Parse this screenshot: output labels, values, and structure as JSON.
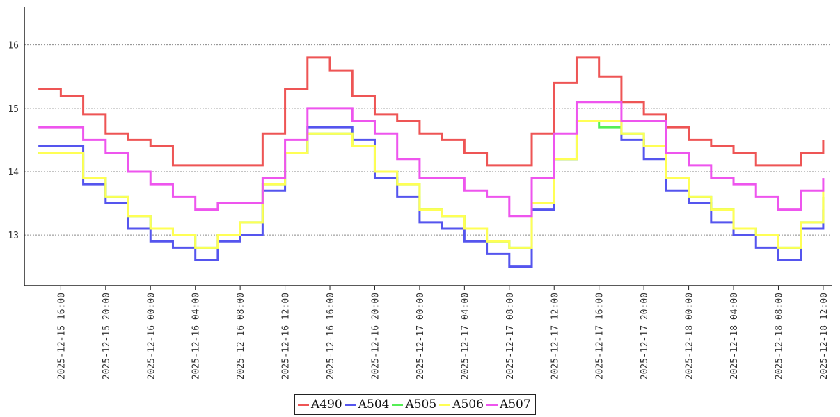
{
  "chart_data": {
    "type": "line",
    "title": "",
    "xlabel": "",
    "ylabel": "",
    "x_ticks": [
      "2025-12-15 16:00",
      "2025-12-15 20:00",
      "2025-12-16 00:00",
      "2025-12-16 04:00",
      "2025-12-16 08:00",
      "2025-12-16 12:00",
      "2025-12-16 16:00",
      "2025-12-16 20:00",
      "2025-12-17 00:00",
      "2025-12-17 04:00",
      "2025-12-17 08:00",
      "2025-12-17 12:00",
      "2025-12-17 16:00",
      "2025-12-17 20:00",
      "2025-12-18 00:00",
      "2025-12-18 04:00",
      "2025-12-18 08:00",
      "2025-12-18 12:00"
    ],
    "xlim": [
      "2025-12-15 12:45",
      "2025-12-18 12:45"
    ],
    "y_ticks": [
      13,
      14,
      15,
      16
    ],
    "ylim": [
      12.2,
      16.6
    ],
    "grid": "horizontal dotted",
    "legend": "bottom-center",
    "series": [
      {
        "name": "A490",
        "color": "#ee5555",
        "points": [
          [
            "2025-12-15 14:00",
            15.3
          ],
          [
            "2025-12-15 16:00",
            15.2
          ],
          [
            "2025-12-15 18:00",
            14.9
          ],
          [
            "2025-12-15 20:00",
            14.6
          ],
          [
            "2025-12-15 22:00",
            14.5
          ],
          [
            "2025-12-16 00:00",
            14.4
          ],
          [
            "2025-12-16 02:00",
            14.1
          ],
          [
            "2025-12-16 04:00",
            14.1
          ],
          [
            "2025-12-16 06:00",
            14.1
          ],
          [
            "2025-12-16 08:00",
            14.1
          ],
          [
            "2025-12-16 10:00",
            14.6
          ],
          [
            "2025-12-16 12:00",
            15.3
          ],
          [
            "2025-12-16 14:00",
            15.8
          ],
          [
            "2025-12-16 16:00",
            15.6
          ],
          [
            "2025-12-16 18:00",
            15.2
          ],
          [
            "2025-12-16 20:00",
            14.9
          ],
          [
            "2025-12-16 22:00",
            14.8
          ],
          [
            "2025-12-17 00:00",
            14.6
          ],
          [
            "2025-12-17 02:00",
            14.5
          ],
          [
            "2025-12-17 04:00",
            14.3
          ],
          [
            "2025-12-17 06:00",
            14.1
          ],
          [
            "2025-12-17 08:00",
            14.1
          ],
          [
            "2025-12-17 10:00",
            14.6
          ],
          [
            "2025-12-17 12:00",
            15.4
          ],
          [
            "2025-12-17 14:00",
            15.8
          ],
          [
            "2025-12-17 16:00",
            15.5
          ],
          [
            "2025-12-17 18:00",
            15.1
          ],
          [
            "2025-12-17 20:00",
            14.9
          ],
          [
            "2025-12-17 22:00",
            14.7
          ],
          [
            "2025-12-18 00:00",
            14.5
          ],
          [
            "2025-12-18 02:00",
            14.4
          ],
          [
            "2025-12-18 04:00",
            14.3
          ],
          [
            "2025-12-18 06:00",
            14.1
          ],
          [
            "2025-12-18 08:00",
            14.1
          ],
          [
            "2025-12-18 10:00",
            14.3
          ],
          [
            "2025-12-18 12:00",
            14.5
          ]
        ]
      },
      {
        "name": "A504",
        "color": "#5555ee",
        "points": [
          [
            "2025-12-15 14:00",
            14.4
          ],
          [
            "2025-12-15 16:00",
            14.4
          ],
          [
            "2025-12-15 18:00",
            13.8
          ],
          [
            "2025-12-15 20:00",
            13.5
          ],
          [
            "2025-12-15 22:00",
            13.1
          ],
          [
            "2025-12-16 00:00",
            12.9
          ],
          [
            "2025-12-16 02:00",
            12.8
          ],
          [
            "2025-12-16 04:00",
            12.6
          ],
          [
            "2025-12-16 06:00",
            12.9
          ],
          [
            "2025-12-16 08:00",
            13.0
          ],
          [
            "2025-12-16 10:00",
            13.7
          ],
          [
            "2025-12-16 12:00",
            14.3
          ],
          [
            "2025-12-16 14:00",
            14.7
          ],
          [
            "2025-12-16 16:00",
            14.7
          ],
          [
            "2025-12-16 18:00",
            14.5
          ],
          [
            "2025-12-16 20:00",
            13.9
          ],
          [
            "2025-12-16 22:00",
            13.6
          ],
          [
            "2025-12-17 00:00",
            13.2
          ],
          [
            "2025-12-17 02:00",
            13.1
          ],
          [
            "2025-12-17 04:00",
            12.9
          ],
          [
            "2025-12-17 06:00",
            12.7
          ],
          [
            "2025-12-17 08:00",
            12.5
          ],
          [
            "2025-12-17 10:00",
            13.4
          ],
          [
            "2025-12-17 12:00",
            14.2
          ],
          [
            "2025-12-17 14:00",
            14.8
          ],
          [
            "2025-12-17 16:00",
            14.8
          ],
          [
            "2025-12-17 18:00",
            14.5
          ],
          [
            "2025-12-17 20:00",
            14.2
          ],
          [
            "2025-12-17 22:00",
            13.7
          ],
          [
            "2025-12-18 00:00",
            13.5
          ],
          [
            "2025-12-18 02:00",
            13.2
          ],
          [
            "2025-12-18 04:00",
            13.0
          ],
          [
            "2025-12-18 06:00",
            12.8
          ],
          [
            "2025-12-18 08:00",
            12.6
          ],
          [
            "2025-12-18 10:00",
            13.1
          ],
          [
            "2025-12-18 12:00",
            13.4
          ]
        ]
      },
      {
        "name": "A505",
        "color": "#55ee55",
        "points": [
          [
            "2025-12-15 14:00",
            14.3
          ],
          [
            "2025-12-15 16:00",
            14.3
          ],
          [
            "2025-12-15 18:00",
            13.9
          ],
          [
            "2025-12-15 20:00",
            13.6
          ],
          [
            "2025-12-15 22:00",
            13.3
          ],
          [
            "2025-12-16 00:00",
            13.1
          ],
          [
            "2025-12-16 02:00",
            13.0
          ],
          [
            "2025-12-16 04:00",
            12.8
          ],
          [
            "2025-12-16 06:00",
            13.0
          ],
          [
            "2025-12-16 08:00",
            13.2
          ],
          [
            "2025-12-16 10:00",
            13.8
          ],
          [
            "2025-12-16 12:00",
            14.3
          ],
          [
            "2025-12-16 14:00",
            14.6
          ],
          [
            "2025-12-16 16:00",
            14.6
          ],
          [
            "2025-12-16 18:00",
            14.4
          ],
          [
            "2025-12-16 20:00",
            14.0
          ],
          [
            "2025-12-16 22:00",
            13.8
          ],
          [
            "2025-12-17 00:00",
            13.4
          ],
          [
            "2025-12-17 02:00",
            13.3
          ],
          [
            "2025-12-17 04:00",
            13.1
          ],
          [
            "2025-12-17 06:00",
            12.9
          ],
          [
            "2025-12-17 08:00",
            12.8
          ],
          [
            "2025-12-17 10:00",
            13.5
          ],
          [
            "2025-12-17 12:00",
            14.2
          ],
          [
            "2025-12-17 14:00",
            14.8
          ],
          [
            "2025-12-17 16:00",
            14.7
          ],
          [
            "2025-12-17 18:00",
            14.6
          ],
          [
            "2025-12-17 20:00",
            14.4
          ],
          [
            "2025-12-17 22:00",
            13.9
          ],
          [
            "2025-12-18 00:00",
            13.6
          ],
          [
            "2025-12-18 02:00",
            13.4
          ],
          [
            "2025-12-18 04:00",
            13.1
          ],
          [
            "2025-12-18 06:00",
            13.0
          ],
          [
            "2025-12-18 08:00",
            12.8
          ],
          [
            "2025-12-18 10:00",
            13.2
          ],
          [
            "2025-12-18 12:00",
            13.6
          ]
        ]
      },
      {
        "name": "A506",
        "color": "#ffff55",
        "points": [
          [
            "2025-12-15 14:00",
            14.3
          ],
          [
            "2025-12-15 16:00",
            14.3
          ],
          [
            "2025-12-15 18:00",
            13.9
          ],
          [
            "2025-12-15 20:00",
            13.6
          ],
          [
            "2025-12-15 22:00",
            13.3
          ],
          [
            "2025-12-16 00:00",
            13.1
          ],
          [
            "2025-12-16 02:00",
            13.0
          ],
          [
            "2025-12-16 04:00",
            12.8
          ],
          [
            "2025-12-16 06:00",
            13.0
          ],
          [
            "2025-12-16 08:00",
            13.2
          ],
          [
            "2025-12-16 10:00",
            13.8
          ],
          [
            "2025-12-16 12:00",
            14.3
          ],
          [
            "2025-12-16 14:00",
            14.6
          ],
          [
            "2025-12-16 16:00",
            14.6
          ],
          [
            "2025-12-16 18:00",
            14.4
          ],
          [
            "2025-12-16 20:00",
            14.0
          ],
          [
            "2025-12-16 22:00",
            13.8
          ],
          [
            "2025-12-17 00:00",
            13.4
          ],
          [
            "2025-12-17 02:00",
            13.3
          ],
          [
            "2025-12-17 04:00",
            13.1
          ],
          [
            "2025-12-17 06:00",
            12.9
          ],
          [
            "2025-12-17 08:00",
            12.8
          ],
          [
            "2025-12-17 10:00",
            13.5
          ],
          [
            "2025-12-17 12:00",
            14.2
          ],
          [
            "2025-12-17 14:00",
            14.8
          ],
          [
            "2025-12-17 16:00",
            14.8
          ],
          [
            "2025-12-17 18:00",
            14.6
          ],
          [
            "2025-12-17 20:00",
            14.4
          ],
          [
            "2025-12-17 22:00",
            13.9
          ],
          [
            "2025-12-18 00:00",
            13.6
          ],
          [
            "2025-12-18 02:00",
            13.4
          ],
          [
            "2025-12-18 04:00",
            13.1
          ],
          [
            "2025-12-18 06:00",
            13.0
          ],
          [
            "2025-12-18 08:00",
            12.8
          ],
          [
            "2025-12-18 10:00",
            13.2
          ],
          [
            "2025-12-18 12:00",
            13.7
          ]
        ]
      },
      {
        "name": "A507",
        "color": "#ee55ee",
        "points": [
          [
            "2025-12-15 14:00",
            14.7
          ],
          [
            "2025-12-15 16:00",
            14.7
          ],
          [
            "2025-12-15 18:00",
            14.5
          ],
          [
            "2025-12-15 20:00",
            14.3
          ],
          [
            "2025-12-15 22:00",
            14.0
          ],
          [
            "2025-12-16 00:00",
            13.8
          ],
          [
            "2025-12-16 02:00",
            13.6
          ],
          [
            "2025-12-16 04:00",
            13.4
          ],
          [
            "2025-12-16 06:00",
            13.5
          ],
          [
            "2025-12-16 08:00",
            13.5
          ],
          [
            "2025-12-16 10:00",
            13.9
          ],
          [
            "2025-12-16 12:00",
            14.5
          ],
          [
            "2025-12-16 14:00",
            15.0
          ],
          [
            "2025-12-16 16:00",
            15.0
          ],
          [
            "2025-12-16 18:00",
            14.8
          ],
          [
            "2025-12-16 20:00",
            14.6
          ],
          [
            "2025-12-16 22:00",
            14.2
          ],
          [
            "2025-12-17 00:00",
            13.9
          ],
          [
            "2025-12-17 02:00",
            13.9
          ],
          [
            "2025-12-17 04:00",
            13.7
          ],
          [
            "2025-12-17 06:00",
            13.6
          ],
          [
            "2025-12-17 08:00",
            13.3
          ],
          [
            "2025-12-17 10:00",
            13.9
          ],
          [
            "2025-12-17 12:00",
            14.6
          ],
          [
            "2025-12-17 14:00",
            15.1
          ],
          [
            "2025-12-17 16:00",
            15.1
          ],
          [
            "2025-12-17 18:00",
            14.8
          ],
          [
            "2025-12-17 20:00",
            14.8
          ],
          [
            "2025-12-17 22:00",
            14.3
          ],
          [
            "2025-12-18 00:00",
            14.1
          ],
          [
            "2025-12-18 02:00",
            13.9
          ],
          [
            "2025-12-18 04:00",
            13.8
          ],
          [
            "2025-12-18 06:00",
            13.6
          ],
          [
            "2025-12-18 08:00",
            13.4
          ],
          [
            "2025-12-18 10:00",
            13.7
          ],
          [
            "2025-12-18 12:00",
            13.9
          ]
        ]
      }
    ]
  }
}
